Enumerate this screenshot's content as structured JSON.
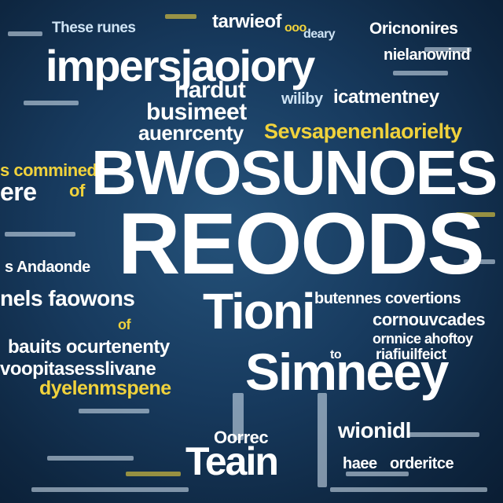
{
  "words": {
    "w01": "These runes",
    "w02": "tarwieof",
    "w03": "deary",
    "w04": "Oricnonires",
    "w05": "impersjaoiory",
    "w06": "nielanowind",
    "w07": "hardut",
    "w08": "wiliby",
    "w09": "icatmentney",
    "w10": "busimeet",
    "w11": "auenrcenty",
    "w12": "Sevsapenenlaorielty",
    "w13": "BWOSUNOES",
    "w14": "ere",
    "w15": "of",
    "w16": "s commined",
    "w17": "REOODS",
    "w18": "s Andaonde",
    "w19": "nels faowons",
    "w20": "Tioni",
    "w21": "butennes covertions",
    "w22": "cornouvcades",
    "w23": "ornnice ahoftoy",
    "w24": "riafiuilfeict",
    "w25": "bauits ocurtenenty",
    "w26": "voopitasesslivane",
    "w27": "dyelenmspene",
    "w28": "to",
    "w29": "Simneey",
    "w30": "Oorrec",
    "w31": "wionidl",
    "w32": "Teain",
    "w33": "haee",
    "w34": "orderitce",
    "w35": "ooo",
    "w36": "of"
  },
  "colors": {
    "background": "#173a5e",
    "primary_text": "#ffffff",
    "accent_text": "#f0d23c"
  }
}
